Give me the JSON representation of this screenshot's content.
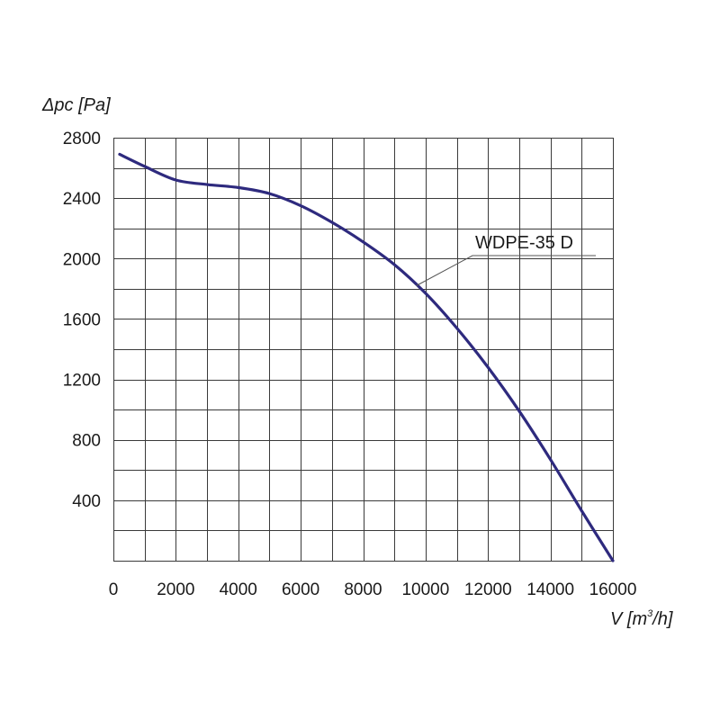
{
  "chart_data": {
    "type": "line",
    "ylabel": {
      "prefix": "Δpc [Pa]"
    },
    "xlabel": {
      "main": "V [m",
      "sup": "3",
      "suffix": "/h]"
    },
    "xlim": [
      0,
      16000
    ],
    "ylim": [
      0,
      2800
    ],
    "x_grid_step": 1000,
    "y_grid_step": 200,
    "x_ticks": [
      {
        "value": 0,
        "label": "0"
      },
      {
        "value": 2000,
        "label": "2000"
      },
      {
        "value": 4000,
        "label": "4000"
      },
      {
        "value": 6000,
        "label": "6000"
      },
      {
        "value": 8000,
        "label": "8000"
      },
      {
        "value": 10000,
        "label": "10000"
      },
      {
        "value": 12000,
        "label": "12000"
      },
      {
        "value": 14000,
        "label": "14000"
      },
      {
        "value": 16000,
        "label": "16000"
      }
    ],
    "y_ticks": [
      {
        "value": 400,
        "label": "400"
      },
      {
        "value": 800,
        "label": "800"
      },
      {
        "value": 1200,
        "label": "1200"
      },
      {
        "value": 1600,
        "label": "1600"
      },
      {
        "value": 2000,
        "label": "2000"
      },
      {
        "value": 2400,
        "label": "2400"
      },
      {
        "value": 2800,
        "label": "2800"
      }
    ],
    "grid": true,
    "series": [
      {
        "name": "WDPE-35 D",
        "color": "#2e2a7e",
        "x": [
          200,
          1000,
          2000,
          3000,
          4000,
          5000,
          6000,
          7000,
          8000,
          9000,
          10000,
          11000,
          12000,
          13000,
          14000,
          15000,
          16000
        ],
        "y": [
          2690,
          2610,
          2520,
          2490,
          2470,
          2430,
          2350,
          2240,
          2110,
          1960,
          1770,
          1540,
          1280,
          990,
          670,
          330,
          0
        ]
      }
    ],
    "annotation": {
      "series_label": "WDPE-35 D",
      "target_x": 9700,
      "target_y": 1820
    }
  }
}
